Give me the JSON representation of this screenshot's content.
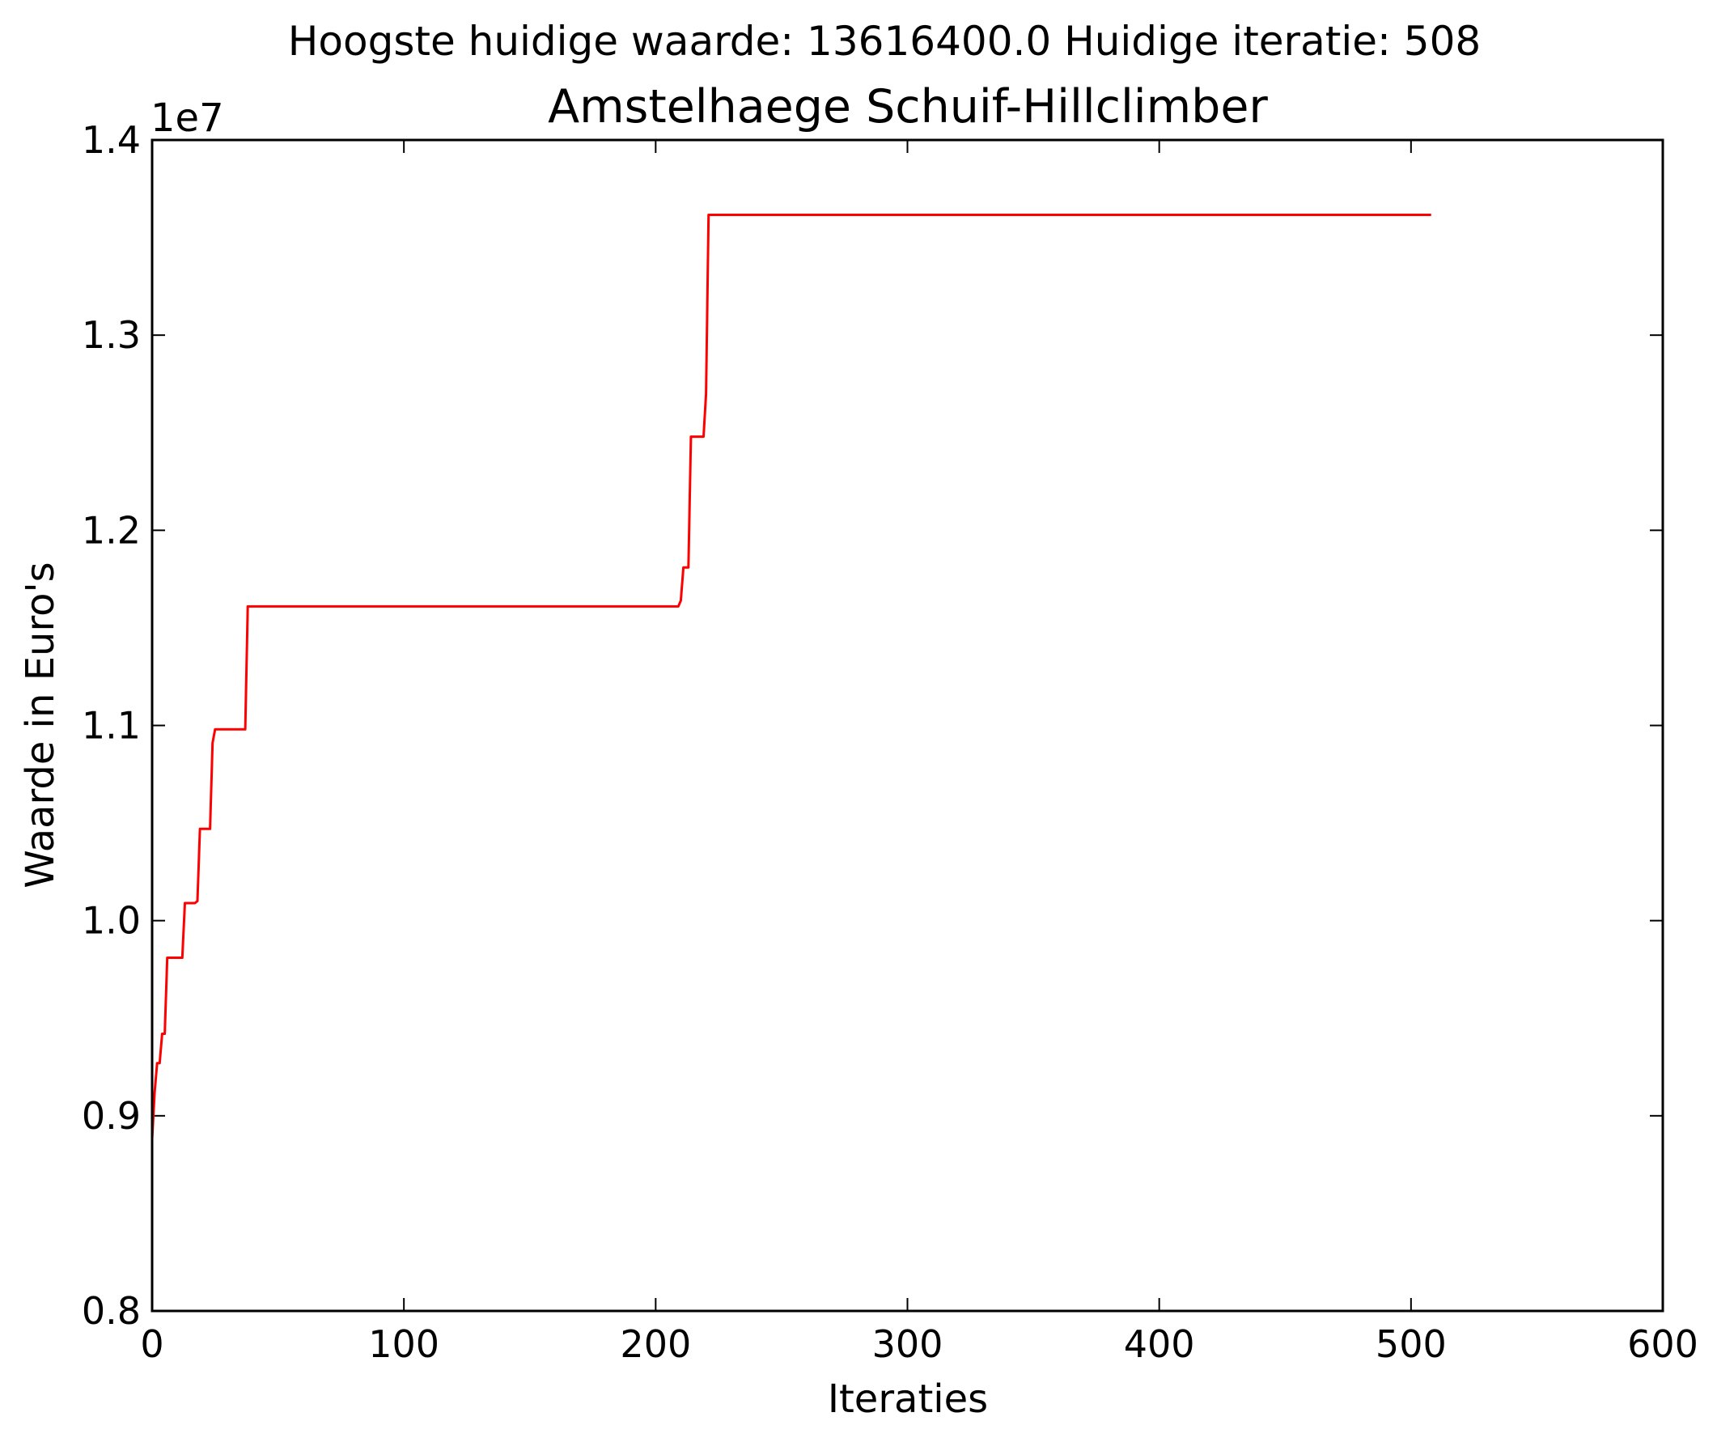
{
  "header": {
    "suptitle": "Hoogste huidige waarde: 13616400.0 Huidige iteratie: 508"
  },
  "chart_data": {
    "type": "line",
    "title": "Amstelhaege Schuif-Hillclimber",
    "xlabel": "Iteraties",
    "ylabel": "Waarde in Euro's",
    "offset_label": "1e7",
    "xlim": [
      0,
      600
    ],
    "ylim": [
      8000000,
      14000000
    ],
    "xticks": [
      0,
      100,
      200,
      300,
      400,
      500,
      600
    ],
    "xtick_labels": [
      "0",
      "100",
      "200",
      "300",
      "400",
      "500",
      "600"
    ],
    "yticks": [
      8000000,
      9000000,
      10000000,
      11000000,
      12000000,
      13000000,
      14000000
    ],
    "ytick_labels": [
      "0.8",
      "0.9",
      "1.0",
      "1.1",
      "1.2",
      "1.3",
      "1.4"
    ],
    "grid": false,
    "legend": "none",
    "series": [
      {
        "color": "#ff0000",
        "x": [
          0,
          1,
          2,
          3,
          4,
          5,
          6,
          12,
          13,
          17,
          18,
          19,
          20,
          23,
          24,
          25,
          26,
          37,
          38,
          39,
          209,
          210,
          211,
          213,
          214,
          219,
          220,
          221,
          508
        ],
        "y": [
          8880000,
          9120000,
          9270000,
          9270000,
          9420000,
          9420000,
          9810000,
          9810000,
          10090000,
          10090000,
          10100000,
          10470000,
          10470000,
          10470000,
          10910000,
          10980000,
          10980000,
          10980000,
          11610000,
          11610000,
          11610000,
          11640000,
          11810000,
          11810000,
          12480000,
          12480000,
          12700000,
          13616400,
          13616400
        ]
      }
    ]
  }
}
